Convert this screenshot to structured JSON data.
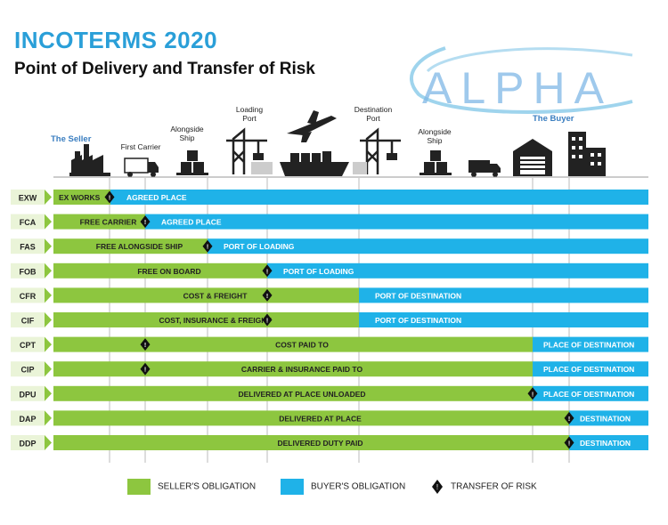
{
  "header": {
    "title": "INCOTERMS 2020",
    "subtitle": "Point of Delivery and Transfer of Risk",
    "logo_text": "ALPHA"
  },
  "parties": {
    "seller": "The Seller",
    "buyer": "The Buyer"
  },
  "stages": [
    {
      "label": "",
      "icon": "factory-icon"
    },
    {
      "label": "First Carrier",
      "icon": "truck-icon"
    },
    {
      "label": "Alongside Ship",
      "icon": "boxes-icon"
    },
    {
      "label": "Loading Port",
      "icon": "crane-icon"
    },
    {
      "label": "",
      "icon": "ship-plane-icon"
    },
    {
      "label": "Destination Port",
      "icon": "crane-icon"
    },
    {
      "label": "Alongside Ship",
      "icon": "boxes-icon"
    },
    {
      "label": "",
      "icon": "truck-icon"
    },
    {
      "label": "",
      "icon": "warehouse-icon"
    },
    {
      "label": "",
      "icon": "buildings-icon"
    }
  ],
  "terms": [
    {
      "code": "EXW",
      "seller": "EX WORKS",
      "buyer": "AGREED PLACE",
      "split": 0,
      "risk": 0
    },
    {
      "code": "FCA",
      "seller": "FREE CARRIER",
      "buyer": "AGREED PLACE",
      "split": 1,
      "risk": 1
    },
    {
      "code": "FAS",
      "seller": "FREE ALONGSIDE SHIP",
      "buyer": "PORT OF LOADING",
      "split": 2,
      "risk": 2
    },
    {
      "code": "FOB",
      "seller": "FREE  ON BOARD",
      "buyer": "PORT OF LOADING",
      "split": 3,
      "risk": 3
    },
    {
      "code": "CFR",
      "seller": "COST & FREIGHT",
      "buyer": "PORT OF DESTINATION",
      "split": 5,
      "risk": 3
    },
    {
      "code": "CIF",
      "seller": "COST, INSURANCE & FREIGHT",
      "buyer": "PORT OF DESTINATION",
      "split": 5,
      "risk": 3
    },
    {
      "code": "CPT",
      "seller": "COST PAID TO",
      "buyer": "PLACE OF DESTINATION",
      "split": 8,
      "risk": 1
    },
    {
      "code": "CIP",
      "seller": "CARRIER & INSURANCE PAID TO",
      "buyer": "PLACE OF DESTINATION",
      "split": 8,
      "risk": 1
    },
    {
      "code": "DPU",
      "seller": "DELIVERED AT PLACE UNLOADED",
      "buyer": "PLACE OF DESTINATION",
      "split": 8,
      "risk": 8
    },
    {
      "code": "DAP",
      "seller": "DELIVERED AT PLACE",
      "buyer": "DESTINATION",
      "split": 9,
      "risk": 9
    },
    {
      "code": "DDP",
      "seller": "DELIVERED DUTY PAID",
      "buyer": "DESTINATION",
      "split": 9,
      "risk": 9
    }
  ],
  "legend": {
    "seller": "SELLER'S OBLIGATION",
    "buyer": "BUYER'S OBLIGATION",
    "risk": "TRANSFER OF RISK"
  },
  "colors": {
    "seller": "#8dc63f",
    "buyer": "#1fb2e8",
    "title": "#2a9fd8",
    "code_bg": "#eaf4d8"
  }
}
